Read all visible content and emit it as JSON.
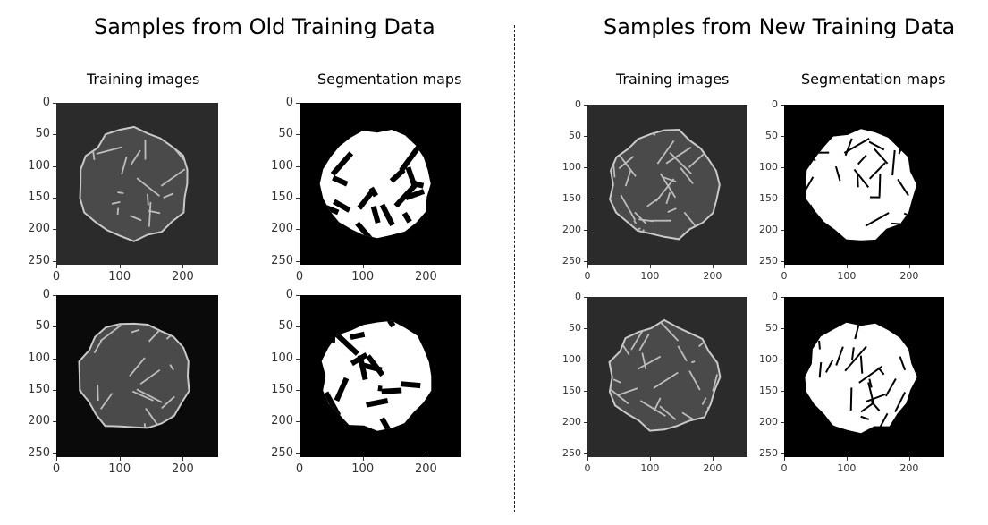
{
  "sections": [
    {
      "title": "Samples from Old Training Data",
      "columns": [
        "Training images",
        "Segmentation maps"
      ],
      "panels": [
        {
          "kind": "image",
          "tone": "gray"
        },
        {
          "kind": "segmentation"
        },
        {
          "kind": "image",
          "tone": "dark"
        },
        {
          "kind": "segmentation"
        }
      ]
    },
    {
      "title": "Samples from New Training Data",
      "columns": [
        "Training images",
        "Segmentation maps"
      ],
      "panels": [
        {
          "kind": "image",
          "tone": "gray"
        },
        {
          "kind": "segmentation"
        },
        {
          "kind": "image",
          "tone": "gray"
        },
        {
          "kind": "segmentation"
        }
      ]
    }
  ],
  "axes": {
    "y_ticks": [
      "0",
      "50",
      "100",
      "150",
      "200",
      "250"
    ],
    "x_ticks": [
      "0",
      "100",
      "200"
    ],
    "range": [
      0,
      256
    ]
  }
}
